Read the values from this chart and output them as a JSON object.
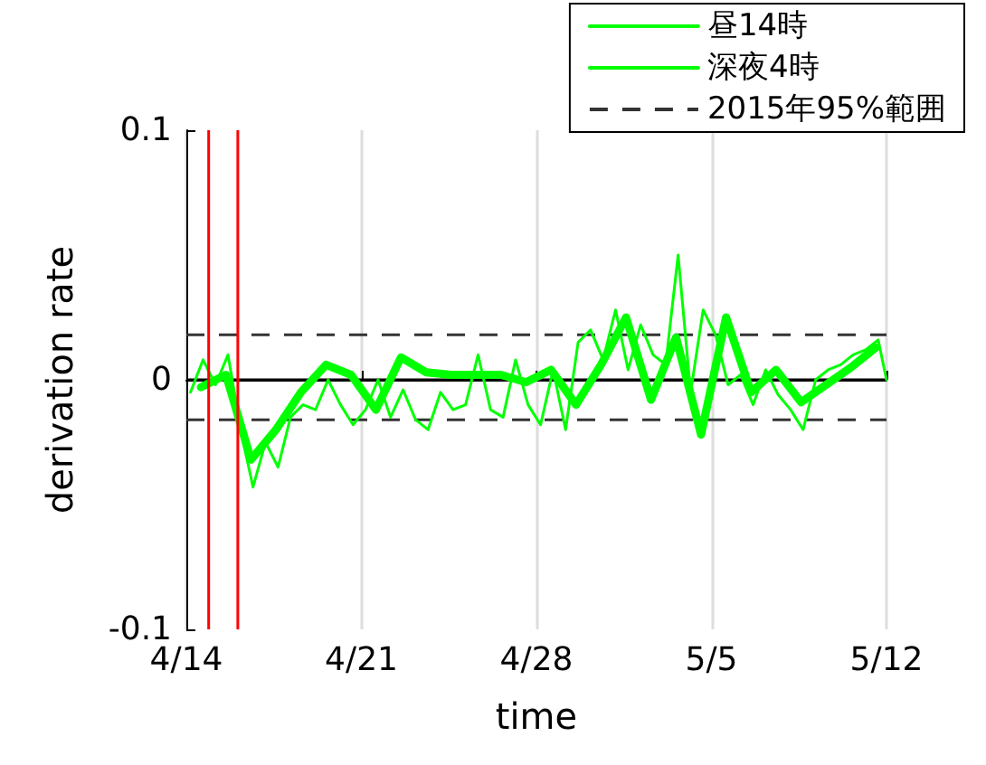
{
  "chart_data": {
    "type": "line",
    "xlabel": "time",
    "ylabel": "derivation rate",
    "xlim": [
      "--04-14",
      "--05-12"
    ],
    "xticks": [
      {
        "value": "--04-14",
        "label": "4/14"
      },
      {
        "value": "--04-21",
        "label": "4/21"
      },
      {
        "value": "--04-28",
        "label": "4/28"
      },
      {
        "value": "--05-05",
        "label": "5/5"
      },
      {
        "value": "--05-12",
        "label": "5/12"
      }
    ],
    "ylim": [
      -0.1,
      0.1
    ],
    "yticks": [
      -0.1,
      0,
      0.1
    ],
    "grid": "x",
    "legend": "top right",
    "marker": "none",
    "line_style": "solid",
    "series": [
      {
        "name": "昼14時",
        "color": "#00ff00",
        "x": [
          "--04-14T14:00",
          "--04-15T14:00",
          "--04-16T14:00",
          "--04-17T14:00",
          "--04-18T14:00",
          "--04-19T14:00",
          "--04-20T14:00",
          "--04-21T14:00",
          "--04-22T14:00",
          "--04-23T14:00",
          "--04-24T14:00",
          "--04-25T14:00",
          "--04-26T14:00",
          "--04-27T14:00",
          "--04-28T14:00",
          "--04-29T14:00",
          "--04-30T14:00",
          "--05-01T14:00",
          "--05-02T14:00",
          "--05-03T14:00",
          "--05-04T14:00",
          "--05-05T14:00",
          "--05-06T14:00",
          "--05-07T14:00",
          "--05-08T14:00",
          "--05-09T14:00",
          "--05-10T14:00",
          "--05-11T14:00"
        ],
        "values": [
          -0.003,
          0.002,
          -0.032,
          -0.02,
          -0.005,
          0.006,
          0.002,
          -0.012,
          0.009,
          0.003,
          0.002,
          0.002,
          0.002,
          -0.001,
          0.004,
          -0.01,
          0.006,
          0.025,
          -0.008,
          0.017,
          -0.022,
          0.025,
          -0.005,
          0.004,
          -0.009,
          -0.002,
          0.005,
          0.013
        ]
      },
      {
        "name": "深夜4時",
        "color": "#00ff00",
        "x": [
          "--04-14T04:00",
          "--04-14T16:00",
          "--04-15T04:00",
          "--04-15T16:00",
          "--04-16T04:00",
          "--04-16T16:00",
          "--04-17T04:00",
          "--04-17T16:00",
          "--04-18T04:00",
          "--04-18T16:00",
          "--04-19T04:00",
          "--04-19T16:00",
          "--04-20T04:00",
          "--04-20T16:00",
          "--04-21T04:00",
          "--04-21T16:00",
          "--04-22T04:00",
          "--04-22T16:00",
          "--04-23T04:00",
          "--04-23T16:00",
          "--04-24T04:00",
          "--04-24T16:00",
          "--04-25T04:00",
          "--04-25T16:00",
          "--04-26T04:00",
          "--04-26T16:00",
          "--04-27T04:00",
          "--04-27T16:00",
          "--04-28T04:00",
          "--04-28T16:00",
          "--04-29T04:00",
          "--04-29T16:00",
          "--04-30T04:00",
          "--04-30T16:00",
          "--05-01T04:00",
          "--05-01T16:00",
          "--05-02T04:00",
          "--05-02T16:00",
          "--05-03T04:00",
          "--05-03T16:00",
          "--05-04T04:00",
          "--05-04T16:00",
          "--05-05T04:00",
          "--05-05T16:00",
          "--05-06T04:00",
          "--05-06T16:00",
          "--05-07T04:00",
          "--05-07T16:00",
          "--05-08T04:00",
          "--05-08T16:00",
          "--05-09T04:00",
          "--05-09T16:00",
          "--05-10T04:00",
          "--05-10T16:00",
          "--05-11T04:00",
          "--05-11T16:00",
          "--05-12T00:00"
        ],
        "values": [
          -0.005,
          0.008,
          -0.002,
          0.01,
          -0.02,
          -0.043,
          -0.025,
          -0.035,
          -0.015,
          -0.01,
          -0.012,
          0.0,
          -0.01,
          -0.018,
          -0.012,
          0.0,
          -0.015,
          -0.004,
          -0.016,
          -0.02,
          -0.005,
          -0.012,
          -0.01,
          0.01,
          -0.012,
          -0.015,
          0.008,
          -0.01,
          -0.018,
          0.004,
          -0.02,
          0.015,
          0.02,
          0.008,
          0.028,
          0.004,
          0.022,
          0.01,
          0.006,
          0.05,
          -0.005,
          0.028,
          0.018,
          -0.002,
          0.002,
          -0.01,
          0.004,
          -0.006,
          -0.012,
          -0.02,
          0.0,
          0.004,
          0.006,
          0.01,
          0.012,
          0.016,
          0.0
        ]
      }
    ],
    "ref_lines": [
      {
        "axis": "y",
        "value": 0.018,
        "label": "2015年95%範囲",
        "color": "#333333",
        "line_style": "dashed"
      },
      {
        "axis": "y",
        "value": -0.016,
        "color": "#333333",
        "line_style": "dashed"
      },
      {
        "axis": "y",
        "value": 0,
        "color": "#000000",
        "line_style": "solid"
      },
      {
        "axis": "x",
        "value": "--04-14T21:26",
        "color": "#ff0000",
        "line_style": "solid"
      },
      {
        "axis": "x",
        "value": "--04-16T01:25",
        "color": "#ff0000",
        "line_style": "solid"
      }
    ]
  }
}
